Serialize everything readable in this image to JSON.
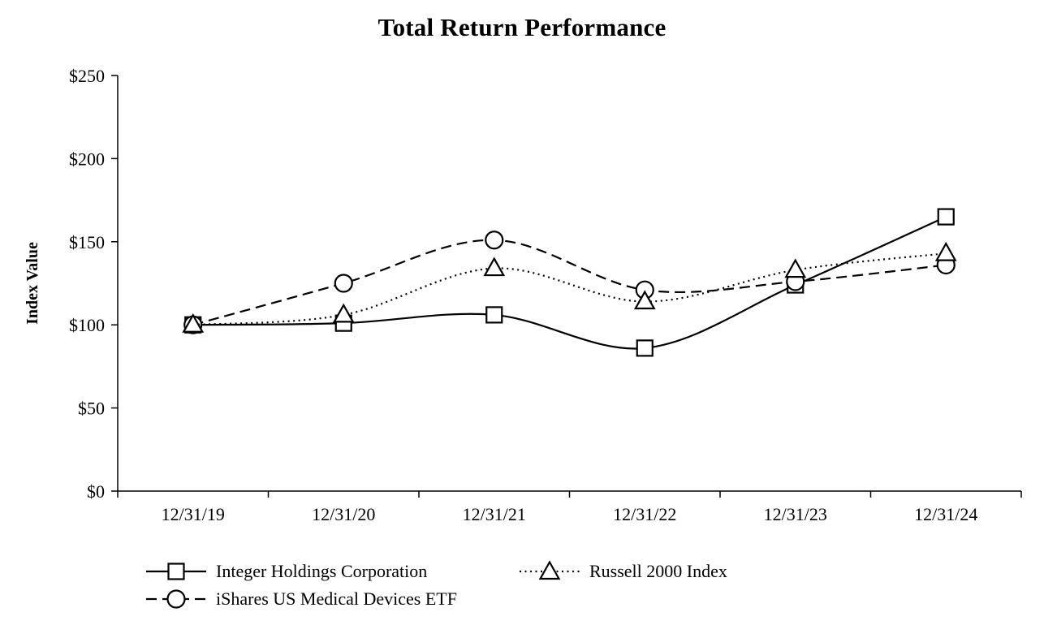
{
  "title": "Total Return Performance",
  "chart_data": {
    "type": "line",
    "title": "Total Return Performance",
    "ylabel": "Index Value",
    "ylim": [
      0,
      250
    ],
    "yticks": [
      0,
      50,
      100,
      150,
      200,
      250
    ],
    "ytick_labels": [
      "$0",
      "$50",
      "$100",
      "$150",
      "$200",
      "$250"
    ],
    "categories": [
      "12/31/19",
      "12/31/20",
      "12/31/21",
      "12/31/22",
      "12/31/23",
      "12/31/24"
    ],
    "series": [
      {
        "name": "Integer Holdings Corporation",
        "marker": "square",
        "line_style": "solid",
        "values": [
          100,
          101,
          106,
          86,
          124,
          165
        ]
      },
      {
        "name": "iShares US Medical Devices ETF",
        "marker": "circle",
        "line_style": "dashed",
        "values": [
          100,
          125,
          151,
          121,
          126,
          136
        ]
      },
      {
        "name": "Russell 2000 Index",
        "marker": "triangle",
        "line_style": "dotted",
        "values": [
          100,
          106,
          134,
          114,
          133,
          143
        ]
      }
    ],
    "line_color": "#000000",
    "marker_fill": "#ffffff",
    "grid": false,
    "legend_position": "bottom"
  }
}
